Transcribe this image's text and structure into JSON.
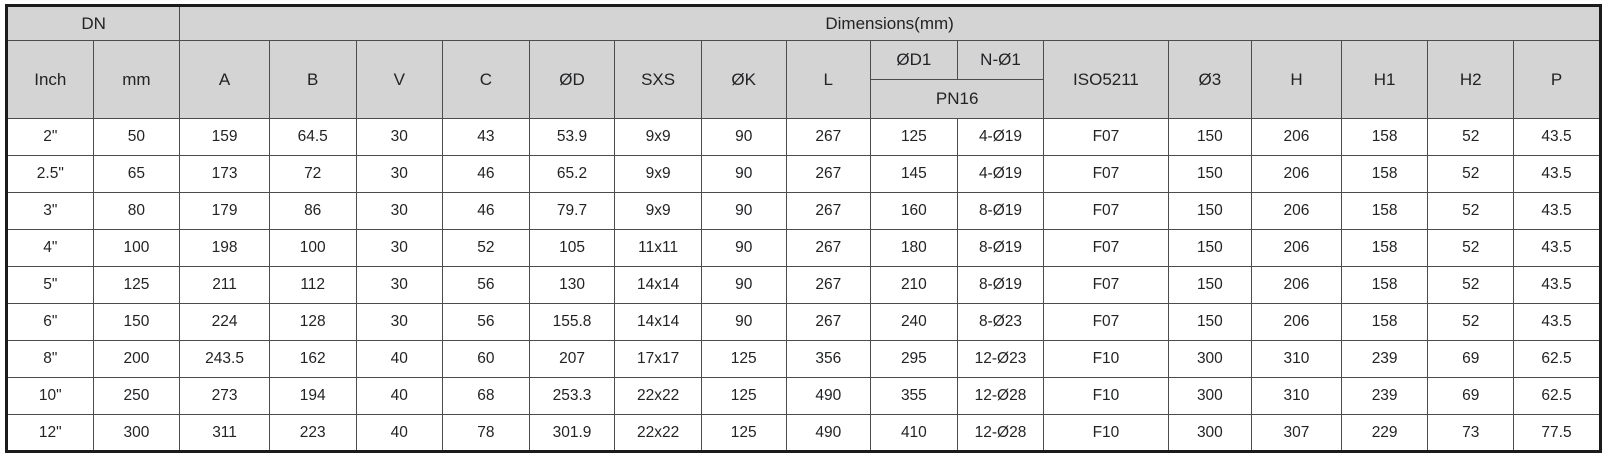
{
  "table": {
    "title_semantic": "valve-dimension-spec-table",
    "header": {
      "dn": "DN",
      "dimensions": "Dimensions(mm)",
      "inch": "Inch",
      "mm": "mm",
      "group1": [
        "A",
        "B",
        "V",
        "C",
        "ØD",
        "SXS",
        "ØK",
        "L"
      ],
      "d1": "ØD1",
      "n_d1": "N-Ø1",
      "pn16": "PN16",
      "group2": [
        "ISO5211",
        "Ø3",
        "H",
        "H1",
        "H2",
        "P"
      ]
    },
    "rows": [
      [
        "2\"",
        "50",
        "159",
        "64.5",
        "30",
        "43",
        "53.9",
        "9x9",
        "90",
        "267",
        "125",
        "4-Ø19",
        "F07",
        "150",
        "206",
        "158",
        "52",
        "43.5"
      ],
      [
        "2.5\"",
        "65",
        "173",
        "72",
        "30",
        "46",
        "65.2",
        "9x9",
        "90",
        "267",
        "145",
        "4-Ø19",
        "F07",
        "150",
        "206",
        "158",
        "52",
        "43.5"
      ],
      [
        "3\"",
        "80",
        "179",
        "86",
        "30",
        "46",
        "79.7",
        "9x9",
        "90",
        "267",
        "160",
        "8-Ø19",
        "F07",
        "150",
        "206",
        "158",
        "52",
        "43.5"
      ],
      [
        "4\"",
        "100",
        "198",
        "100",
        "30",
        "52",
        "105",
        "11x11",
        "90",
        "267",
        "180",
        "8-Ø19",
        "F07",
        "150",
        "206",
        "158",
        "52",
        "43.5"
      ],
      [
        "5\"",
        "125",
        "211",
        "112",
        "30",
        "56",
        "130",
        "14x14",
        "90",
        "267",
        "210",
        "8-Ø19",
        "F07",
        "150",
        "206",
        "158",
        "52",
        "43.5"
      ],
      [
        "6\"",
        "150",
        "224",
        "128",
        "30",
        "56",
        "155.8",
        "14x14",
        "90",
        "267",
        "240",
        "8-Ø23",
        "F07",
        "150",
        "206",
        "158",
        "52",
        "43.5"
      ],
      [
        "8\"",
        "200",
        "243.5",
        "162",
        "40",
        "60",
        "207",
        "17x17",
        "125",
        "356",
        "295",
        "12-Ø23",
        "F10",
        "300",
        "310",
        "239",
        "69",
        "62.5"
      ],
      [
        "10\"",
        "250",
        "273",
        "194",
        "40",
        "68",
        "253.3",
        "22x22",
        "125",
        "490",
        "355",
        "12-Ø28",
        "F10",
        "300",
        "310",
        "239",
        "69",
        "62.5"
      ],
      [
        "12\"",
        "300",
        "311",
        "223",
        "40",
        "78",
        "301.9",
        "22x22",
        "125",
        "490",
        "410",
        "12-Ø28",
        "F10",
        "300",
        "307",
        "229",
        "73",
        "77.5"
      ]
    ]
  },
  "colors": {
    "header_background": "#d4d4d4",
    "inner_border": "#4c4c4e",
    "outer_border": "#1b1b1b",
    "text": "#222325",
    "cell_background": "#ffffff"
  }
}
